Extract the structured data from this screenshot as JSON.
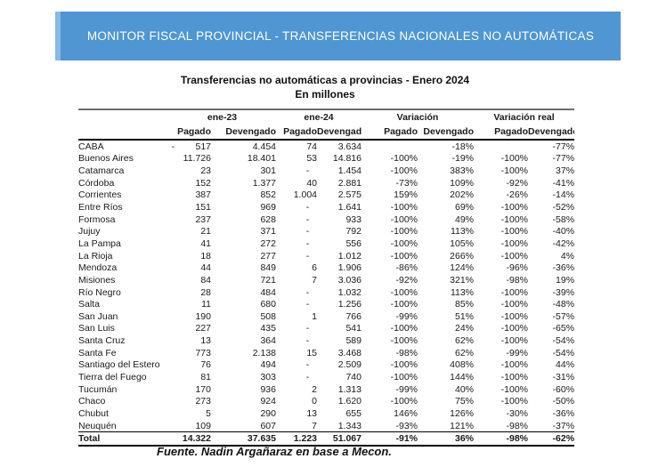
{
  "banner": {
    "title": "MONITOR FISCAL PROVINCIAL - TRANSFERENCIAS NACIONALES NO AUTOMÁTICAS",
    "bg_color": "#4F96D2",
    "text_color": "#FFFFFF"
  },
  "heading": {
    "title": "Transferencias no automáticas a provincias - Enero 2024",
    "subtitle": "En millones"
  },
  "table": {
    "group_headers": [
      "",
      "ene-23",
      "ene-24",
      "Variación",
      "Variación real"
    ],
    "column_headers": [
      "",
      "Pagado",
      "Devengado",
      "Pagado",
      "Devengado",
      "Pagado",
      "Devengado",
      "Pagado",
      "Devengado"
    ],
    "rows": [
      {
        "name": "CABA",
        "values": [
          "-        517",
          "4.454",
          "74",
          "3.634",
          "",
          "-18%",
          "",
          "-77%"
        ]
      },
      {
        "name": "Buenos Aires",
        "values": [
          "11.726",
          "18.401",
          "53",
          "14.816",
          "-100%",
          "-19%",
          "-100%",
          "-77%"
        ]
      },
      {
        "name": "Catamarca",
        "values": [
          "23",
          "301",
          "-   ",
          "1.454",
          "-100%",
          "383%",
          "-100%",
          "37%"
        ]
      },
      {
        "name": "Córdoba",
        "values": [
          "152",
          "1.377",
          "40",
          "2.881",
          "-73%",
          "109%",
          "-92%",
          "-41%"
        ]
      },
      {
        "name": "Corrientes",
        "values": [
          "387",
          "852",
          "1.004",
          "2.575",
          "159%",
          "202%",
          "-26%",
          "-14%"
        ]
      },
      {
        "name": "Entre Ríos",
        "values": [
          "151",
          "969",
          "-   ",
          "1.641",
          "-100%",
          "69%",
          "-100%",
          "-52%"
        ]
      },
      {
        "name": "Formosa",
        "values": [
          "237",
          "628",
          "-   ",
          "933",
          "-100%",
          "49%",
          "-100%",
          "-58%"
        ]
      },
      {
        "name": "Jujuy",
        "values": [
          "21",
          "371",
          "-   ",
          "792",
          "-100%",
          "113%",
          "-100%",
          "-40%"
        ]
      },
      {
        "name": "La Pampa",
        "values": [
          "41",
          "272",
          "-   ",
          "556",
          "-100%",
          "105%",
          "-100%",
          "-42%"
        ]
      },
      {
        "name": "La Rioja",
        "values": [
          "18",
          "277",
          "-   ",
          "1.012",
          "-100%",
          "266%",
          "-100%",
          "4%"
        ]
      },
      {
        "name": "Mendoza",
        "values": [
          "44",
          "849",
          "6",
          "1.906",
          "-86%",
          "124%",
          "-96%",
          "-36%"
        ]
      },
      {
        "name": "Misiones",
        "values": [
          "84",
          "721",
          "7",
          "3.036",
          "-92%",
          "321%",
          "-98%",
          "19%"
        ]
      },
      {
        "name": "Río Negro",
        "values": [
          "28",
          "484",
          "-   ",
          "1.032",
          "-100%",
          "113%",
          "-100%",
          "-39%"
        ]
      },
      {
        "name": "Salta",
        "values": [
          "11",
          "680",
          "-   ",
          "1.256",
          "-100%",
          "85%",
          "-100%",
          "-48%"
        ]
      },
      {
        "name": "San Juan",
        "values": [
          "190",
          "508",
          "1",
          "766",
          "-99%",
          "51%",
          "-100%",
          "-57%"
        ]
      },
      {
        "name": "San Luis",
        "values": [
          "227",
          "435",
          "-   ",
          "541",
          "-100%",
          "24%",
          "-100%",
          "-65%"
        ]
      },
      {
        "name": "Santa Cruz",
        "values": [
          "13",
          "364",
          "-   ",
          "589",
          "-100%",
          "62%",
          "-100%",
          "-54%"
        ]
      },
      {
        "name": "Santa Fe",
        "values": [
          "773",
          "2.138",
          "15",
          "3.468",
          "-98%",
          "62%",
          "-99%",
          "-54%"
        ]
      },
      {
        "name": "Santiago del Estero",
        "values": [
          "76",
          "494",
          "-   ",
          "2.509",
          "-100%",
          "408%",
          "-100%",
          "44%"
        ]
      },
      {
        "name": "Tierra del Fuego",
        "values": [
          "81",
          "303",
          "-   ",
          "740",
          "-100%",
          "144%",
          "-100%",
          "-31%"
        ]
      },
      {
        "name": "Tucumán",
        "values": [
          "170",
          "936",
          "2",
          "1.313",
          "-99%",
          "40%",
          "-100%",
          "-60%"
        ]
      },
      {
        "name": "Chaco",
        "values": [
          "273",
          "924",
          "0",
          "1.620",
          "-100%",
          "75%",
          "-100%",
          "-50%"
        ]
      },
      {
        "name": "Chubut",
        "values": [
          "5",
          "290",
          "13",
          "655",
          "146%",
          "126%",
          "-30%",
          "-36%"
        ]
      },
      {
        "name": "Neuquén",
        "values": [
          "109",
          "607",
          "7",
          "1.343",
          "-93%",
          "121%",
          "-98%",
          "-37%"
        ]
      }
    ],
    "total": {
      "name": "Total",
      "values": [
        "14.322",
        "37.635",
        "1.223",
        "51.067",
        "-91%",
        "36%",
        "-98%",
        "-62%"
      ]
    }
  },
  "footer": {
    "source": "Fuente. Nadin Argañaraz en base a Mecon."
  }
}
